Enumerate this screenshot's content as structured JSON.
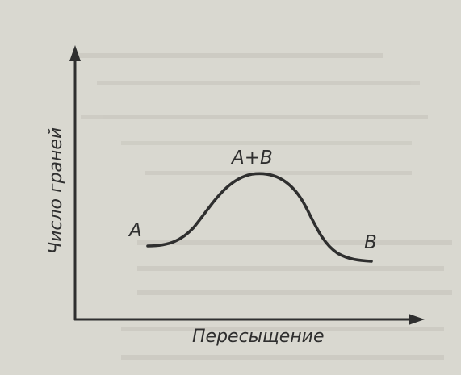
{
  "figure": {
    "y_axis_label": "Число граней",
    "x_axis_label": "Пересыщение",
    "curve_labels": {
      "left": "A",
      "peak": "A+B",
      "right": "B"
    }
  },
  "chart_data": {
    "type": "line",
    "xlabel": "Пересыщение",
    "ylabel": "Число граней",
    "annotations": [
      "A",
      "A+B",
      "B"
    ]
  },
  "colors": {
    "paper": "#d9d8d0",
    "ink": "#2f2f2f",
    "bleed_through": "#b9b7ae"
  }
}
